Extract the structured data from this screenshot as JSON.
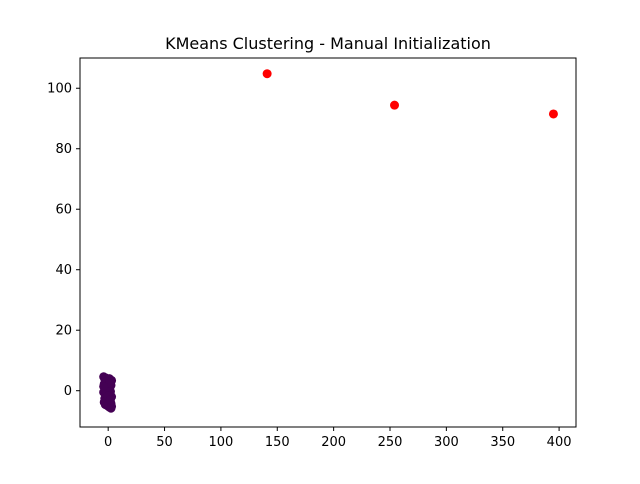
{
  "chart_data": {
    "type": "scatter",
    "title": "KMeans Clustering - Manual Initialization",
    "xlabel": "",
    "ylabel": "",
    "xlim": [
      -25,
      415
    ],
    "ylim": [
      -12,
      110
    ],
    "xticks": [
      "0",
      "50",
      "100",
      "150",
      "200",
      "250",
      "300",
      "350",
      "400"
    ],
    "yticks": [
      "0",
      "20",
      "40",
      "60",
      "80",
      "100"
    ],
    "grid": false,
    "legend": "none",
    "series": [
      {
        "color": "#440154",
        "points": [
          [
            -4,
            4.6
          ],
          [
            -3,
            3.8
          ],
          [
            -2,
            4.2
          ],
          [
            -1,
            3.0
          ],
          [
            0,
            3.5
          ],
          [
            1,
            4.0
          ],
          [
            2,
            2.6
          ],
          [
            3,
            3.4
          ],
          [
            -3.5,
            2.2
          ],
          [
            -2,
            1.5
          ],
          [
            -0.5,
            2.0
          ],
          [
            1.5,
            1.0
          ],
          [
            2.5,
            1.8
          ],
          [
            -1.5,
            0.6
          ],
          [
            0.5,
            0.2
          ],
          [
            -4,
            -0.5
          ],
          [
            -2.5,
            -1.2
          ],
          [
            -1,
            -0.8
          ],
          [
            1,
            -1.5
          ],
          [
            2,
            -0.3
          ],
          [
            3,
            -2.0
          ],
          [
            -3,
            -2.6
          ],
          [
            -1.5,
            -3.2
          ],
          [
            0,
            -2.8
          ],
          [
            1.5,
            -3.6
          ],
          [
            2.5,
            -4.2
          ],
          [
            -2.5,
            -4.6
          ],
          [
            -0.5,
            -5.0
          ],
          [
            1,
            -5.4
          ],
          [
            2.5,
            -5.8
          ],
          [
            -3.5,
            -3.8
          ],
          [
            0.5,
            -4.4
          ],
          [
            -1,
            1.2
          ],
          [
            2,
            3.0
          ],
          [
            -2,
            2.8
          ],
          [
            3,
            -5.2
          ],
          [
            1,
            2.4
          ],
          [
            -4,
            1.4
          ],
          [
            0,
            -1.8
          ],
          [
            2,
            -3.0
          ]
        ]
      },
      {
        "color": "#ff0000",
        "points": [
          [
            141,
            104.8
          ],
          [
            254,
            94.4
          ],
          [
            395,
            91.5
          ]
        ]
      }
    ]
  }
}
